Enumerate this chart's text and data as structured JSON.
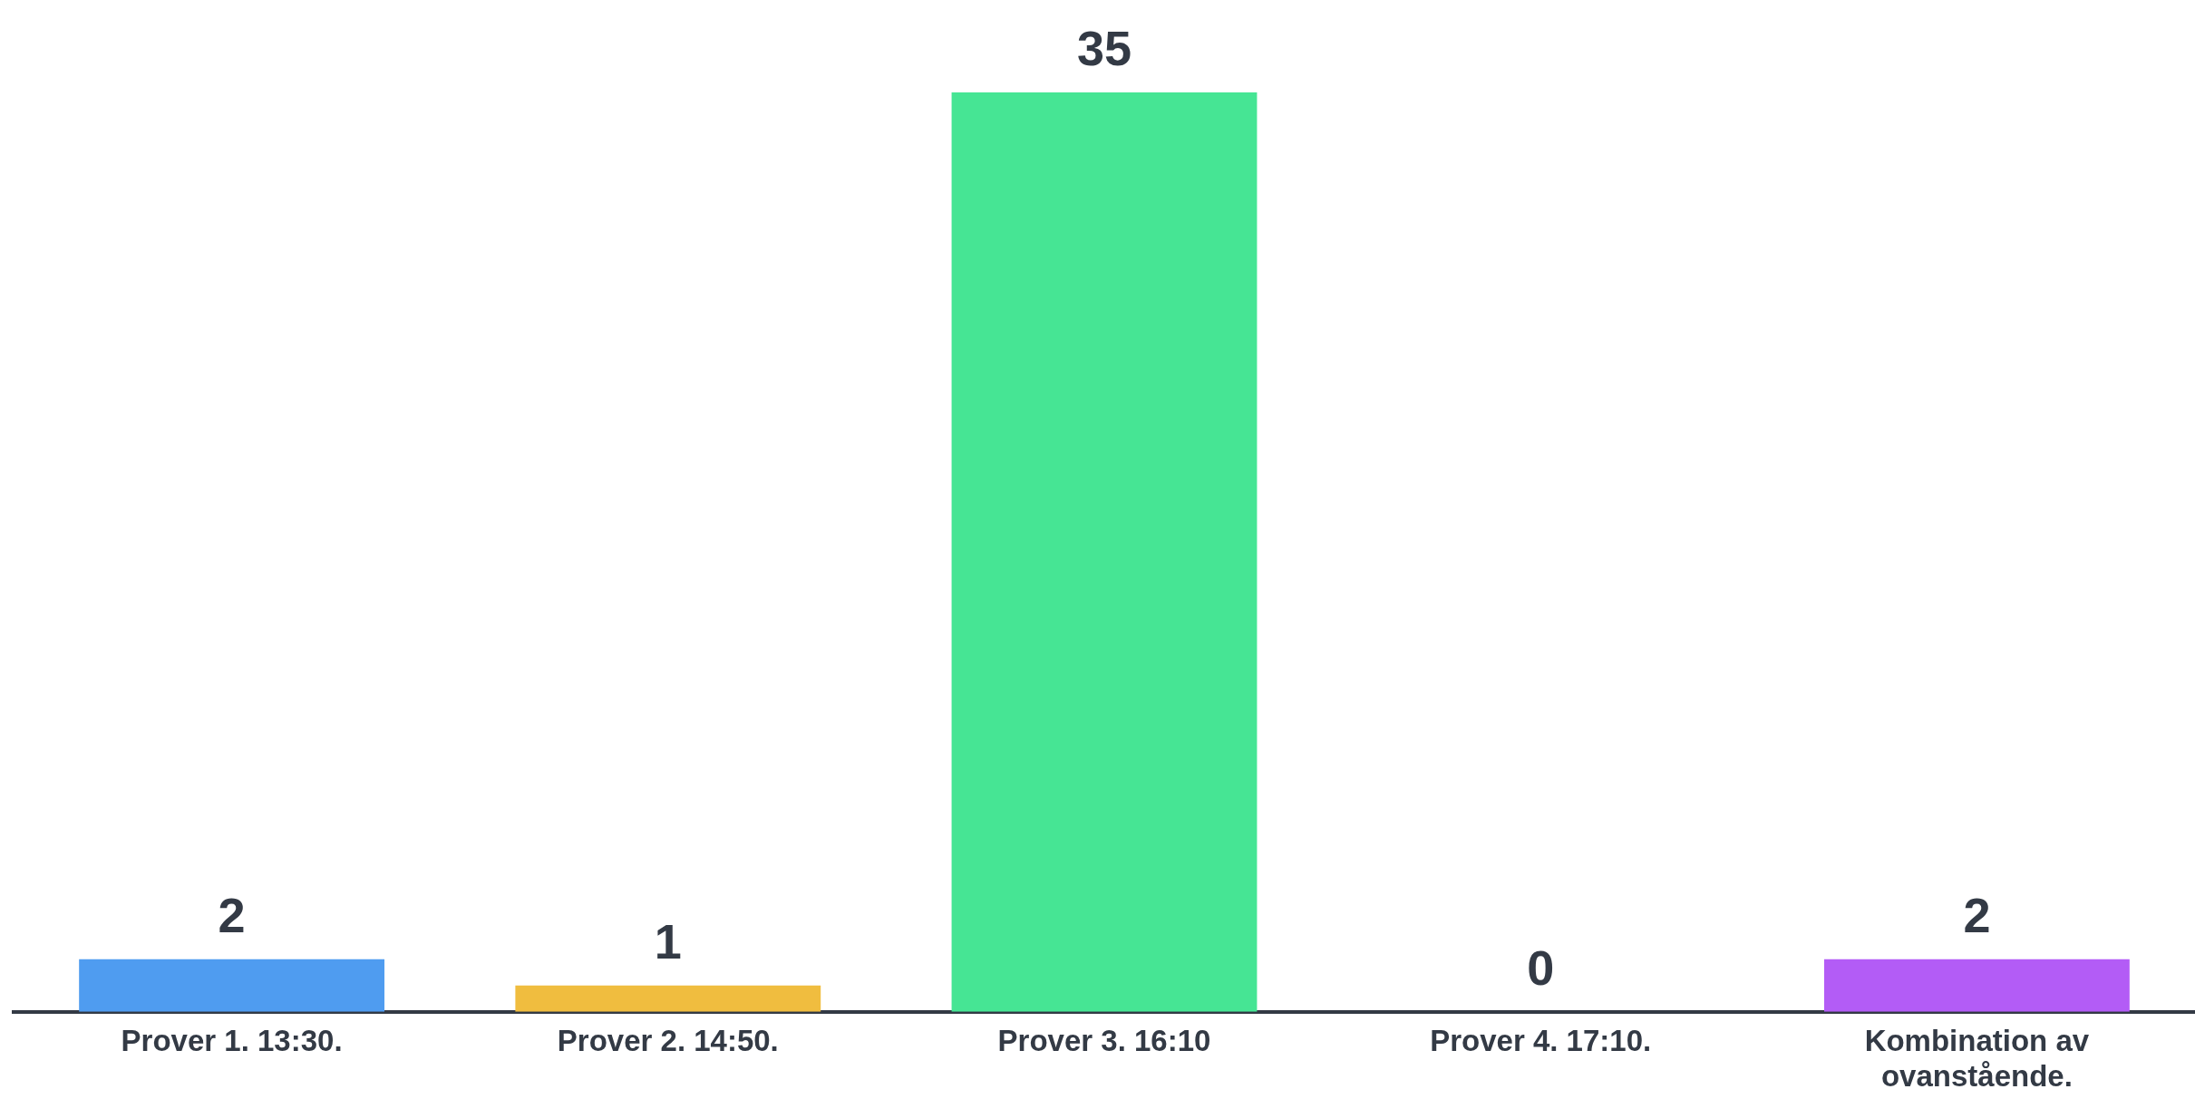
{
  "chart_data": {
    "type": "bar",
    "categories": [
      "Prover 1. 13:30.",
      "Prover 2. 14:50.",
      "Prover 3. 16:10",
      "Prover 4. 17:10.",
      "Kombination av ovanstående."
    ],
    "values": [
      2,
      1,
      35,
      0,
      2
    ],
    "colors": [
      "#4f9cf0",
      "#f0bd3f",
      "#46e594",
      "#b35cf6",
      "#b35cf6"
    ],
    "data_labels": true,
    "grid": false,
    "legend": false,
    "tick_labels": "x"
  }
}
